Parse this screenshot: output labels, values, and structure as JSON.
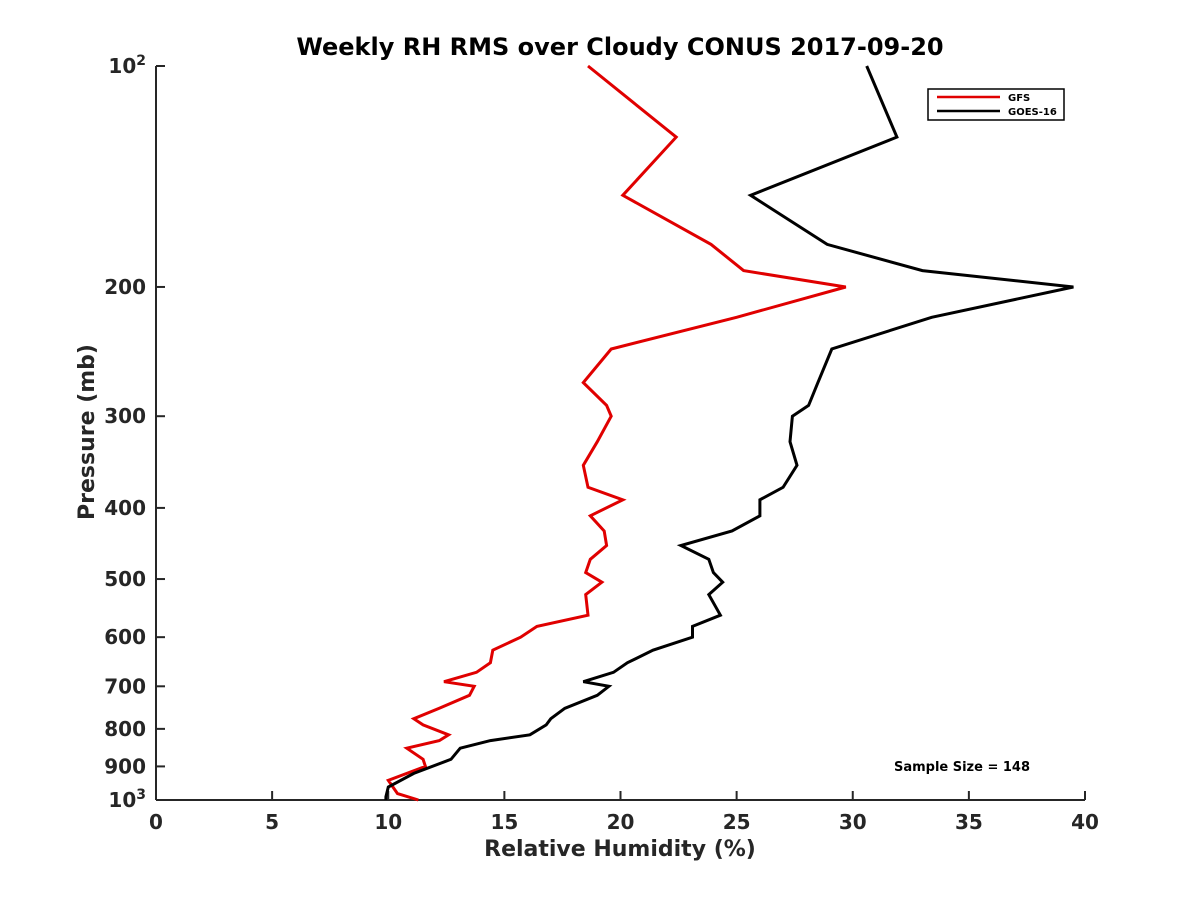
{
  "chart_data": {
    "type": "line",
    "title": "Weekly RH RMS over Cloudy CONUS 2017-09-20",
    "xlabel": "Relative Humidity (%)",
    "ylabel": "Pressure (mb)",
    "xlim": [
      0,
      40
    ],
    "ylim": [
      100,
      1000
    ],
    "y_scale": "log",
    "y_reversed": true,
    "grid": false,
    "legend_position": "top-right",
    "x_ticks": [
      {
        "value": 0,
        "label": "0"
      },
      {
        "value": 5,
        "label": "5"
      },
      {
        "value": 10,
        "label": "10"
      },
      {
        "value": 15,
        "label": "15"
      },
      {
        "value": 20,
        "label": "20"
      },
      {
        "value": 25,
        "label": "25"
      },
      {
        "value": 30,
        "label": "30"
      },
      {
        "value": 35,
        "label": "35"
      },
      {
        "value": 40,
        "label": "40"
      }
    ],
    "y_ticks": [
      {
        "value": 100,
        "label": "10",
        "sup": "2"
      },
      {
        "value": 200,
        "label": "200",
        "sup": ""
      },
      {
        "value": 300,
        "label": "300",
        "sup": ""
      },
      {
        "value": 400,
        "label": "400",
        "sup": ""
      },
      {
        "value": 500,
        "label": "500",
        "sup": ""
      },
      {
        "value": 600,
        "label": "600",
        "sup": ""
      },
      {
        "value": 700,
        "label": "700",
        "sup": ""
      },
      {
        "value": 800,
        "label": "800",
        "sup": ""
      },
      {
        "value": 900,
        "label": "900",
        "sup": ""
      },
      {
        "value": 1000,
        "label": "10",
        "sup": "3"
      }
    ],
    "series": [
      {
        "name": "GFS",
        "color": "#e00000",
        "points": [
          [
            18.6,
            100
          ],
          [
            22.4,
            125
          ],
          [
            20.1,
            150
          ],
          [
            23.9,
            175
          ],
          [
            25.3,
            190
          ],
          [
            29.7,
            200
          ],
          [
            25.0,
            220
          ],
          [
            19.6,
            243
          ],
          [
            18.4,
            270
          ],
          [
            19.4,
            290
          ],
          [
            19.6,
            300
          ],
          [
            19.0,
            325
          ],
          [
            18.4,
            350
          ],
          [
            18.6,
            375
          ],
          [
            20.1,
            390
          ],
          [
            18.7,
            410
          ],
          [
            19.3,
            430
          ],
          [
            19.4,
            450
          ],
          [
            18.7,
            470
          ],
          [
            18.5,
            490
          ],
          [
            19.2,
            505
          ],
          [
            18.5,
            525
          ],
          [
            18.6,
            560
          ],
          [
            16.4,
            580
          ],
          [
            15.7,
            600
          ],
          [
            14.5,
            625
          ],
          [
            14.4,
            650
          ],
          [
            13.8,
            670
          ],
          [
            12.4,
            690
          ],
          [
            13.7,
            700
          ],
          [
            13.5,
            720
          ],
          [
            12.2,
            750
          ],
          [
            11.1,
            775
          ],
          [
            11.5,
            790
          ],
          [
            12.6,
            815
          ],
          [
            12.2,
            830
          ],
          [
            10.8,
            850
          ],
          [
            11.5,
            880
          ],
          [
            11.6,
            900
          ],
          [
            10.0,
            940
          ],
          [
            10.2,
            960
          ],
          [
            10.4,
            980
          ],
          [
            11.3,
            1000
          ]
        ]
      },
      {
        "name": "GOES-16",
        "color": "#000000",
        "points": [
          [
            30.6,
            100
          ],
          [
            31.9,
            125
          ],
          [
            25.6,
            150
          ],
          [
            28.9,
            175
          ],
          [
            33.0,
            190
          ],
          [
            39.5,
            200
          ],
          [
            33.4,
            220
          ],
          [
            29.1,
            243
          ],
          [
            28.5,
            270
          ],
          [
            28.1,
            290
          ],
          [
            27.4,
            300
          ],
          [
            27.3,
            325
          ],
          [
            27.6,
            350
          ],
          [
            27.0,
            375
          ],
          [
            26.0,
            390
          ],
          [
            26.0,
            410
          ],
          [
            24.8,
            430
          ],
          [
            22.6,
            450
          ],
          [
            23.8,
            470
          ],
          [
            24.0,
            490
          ],
          [
            24.4,
            505
          ],
          [
            23.8,
            525
          ],
          [
            24.3,
            560
          ],
          [
            23.1,
            580
          ],
          [
            23.1,
            600
          ],
          [
            21.4,
            625
          ],
          [
            20.3,
            650
          ],
          [
            19.7,
            670
          ],
          [
            18.4,
            690
          ],
          [
            19.5,
            700
          ],
          [
            19.0,
            720
          ],
          [
            17.6,
            750
          ],
          [
            17.0,
            775
          ],
          [
            16.8,
            790
          ],
          [
            16.1,
            815
          ],
          [
            14.4,
            830
          ],
          [
            13.1,
            850
          ],
          [
            12.7,
            880
          ],
          [
            11.1,
            920
          ],
          [
            10.0,
            960
          ],
          [
            9.9,
            990
          ],
          [
            9.9,
            1000
          ]
        ]
      }
    ],
    "annotations": [
      {
        "text": "Sample Size = 148"
      }
    ]
  }
}
